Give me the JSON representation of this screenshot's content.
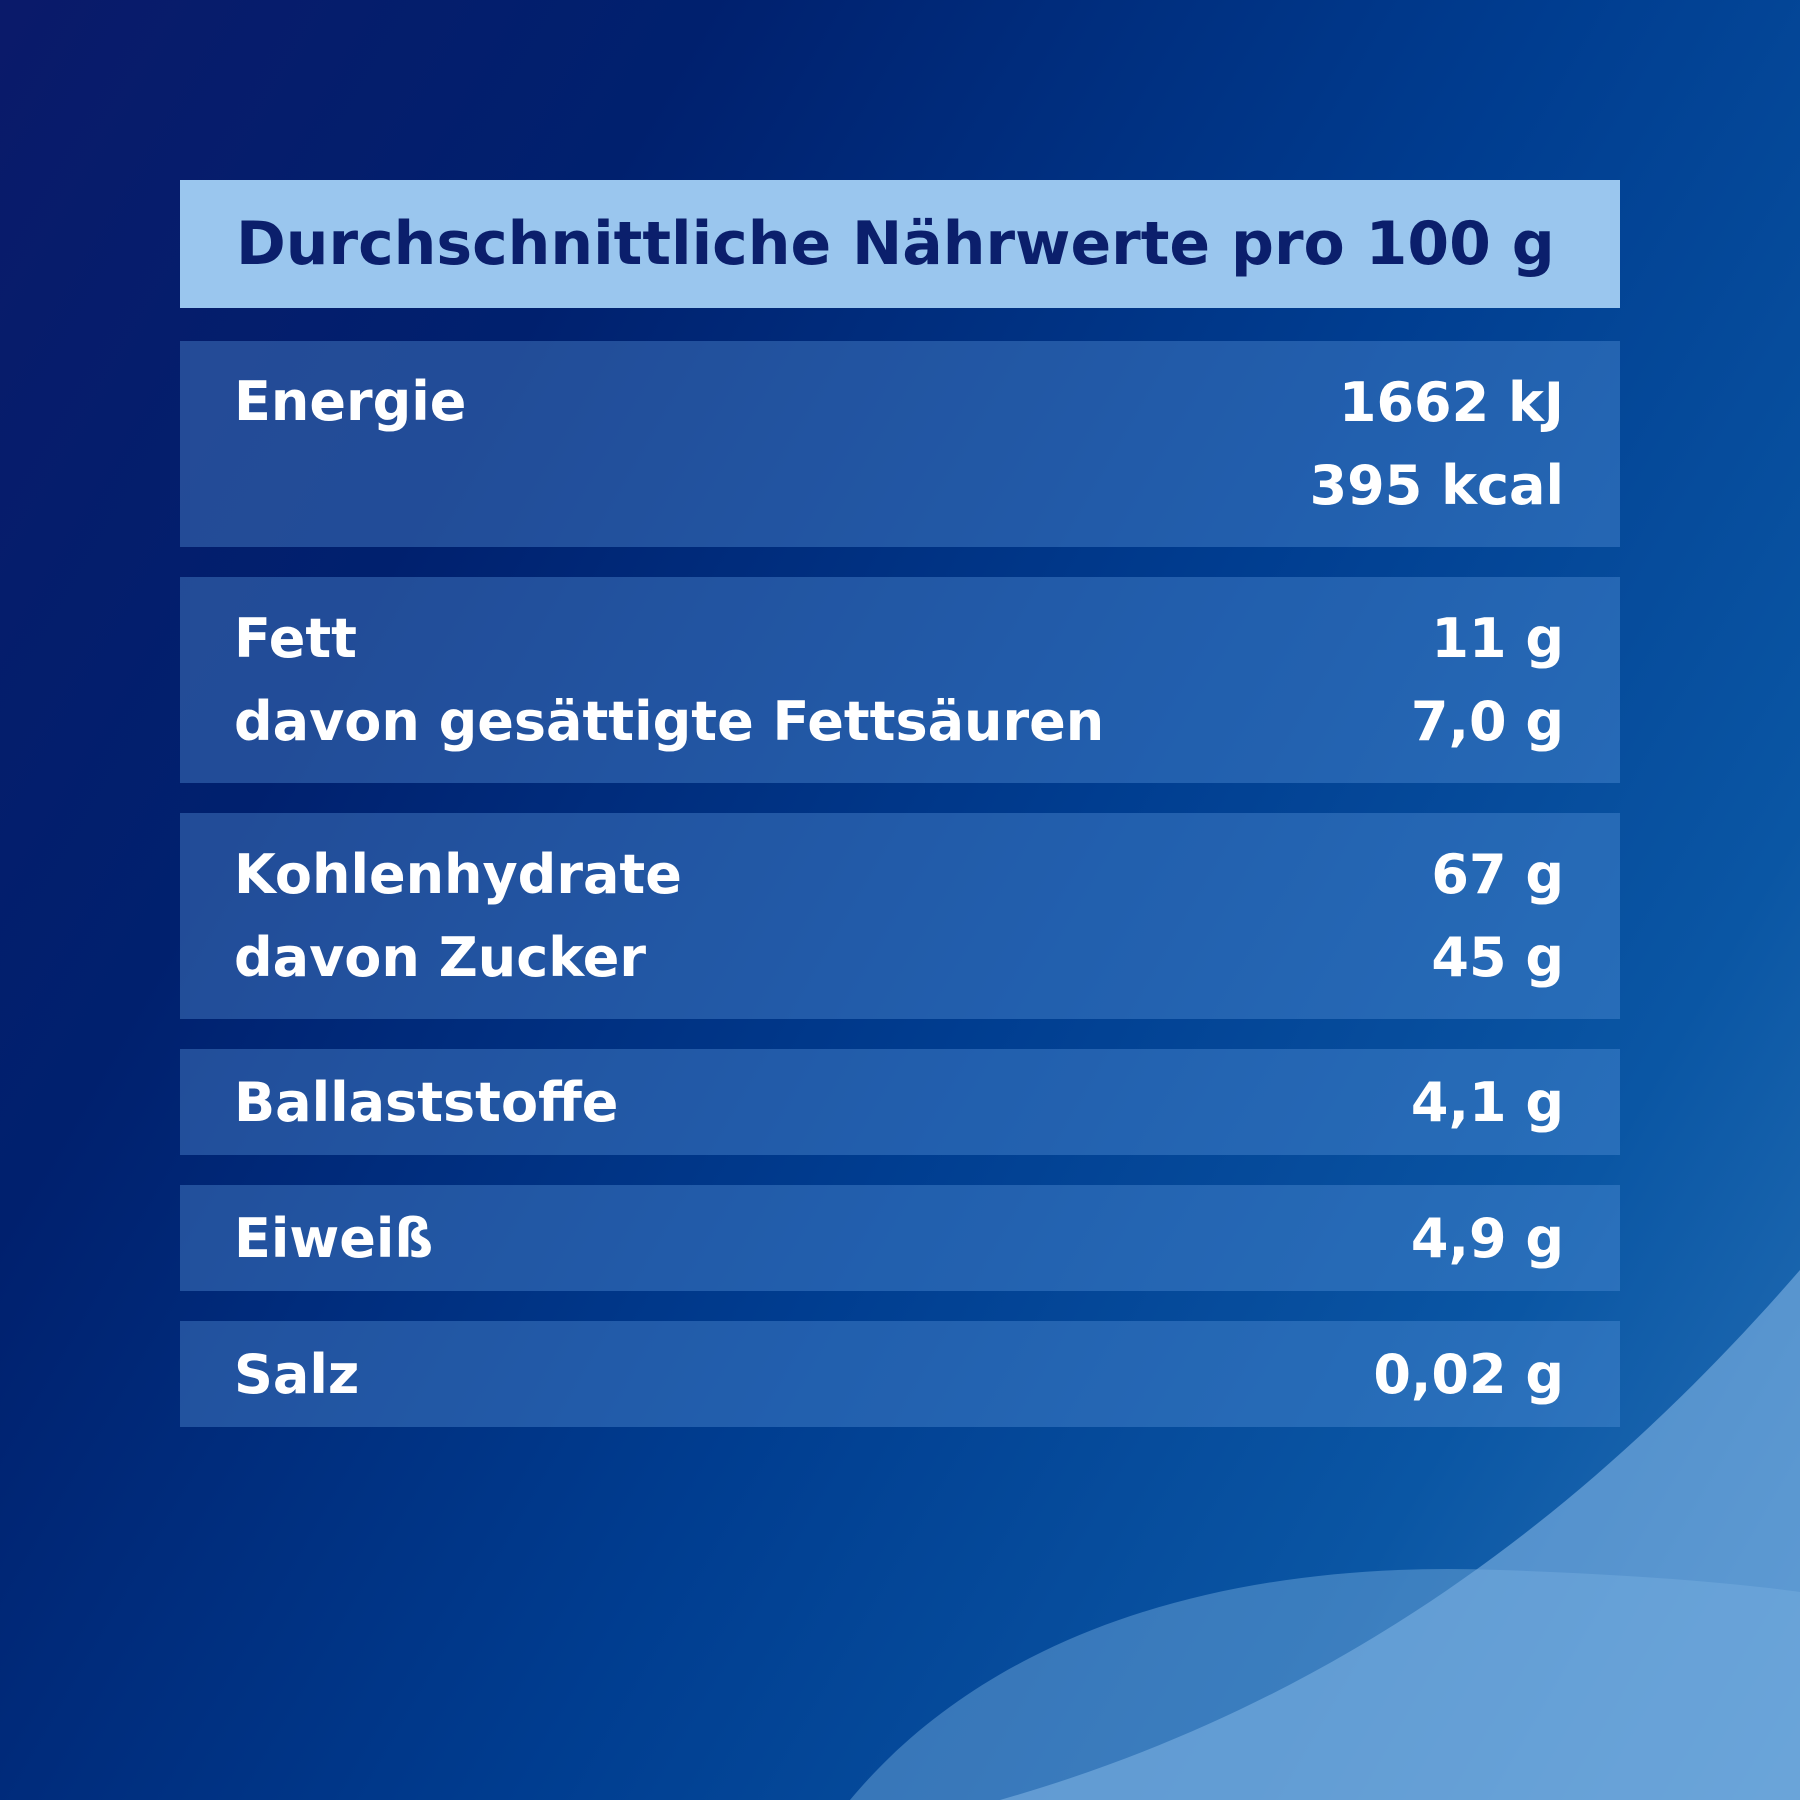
{
  "header": {
    "title": "Durchschnittliche Nährwerte pro 100 g"
  },
  "rows": [
    {
      "labels": [
        "Energie"
      ],
      "values": [
        "1662 kJ",
        "395 kcal"
      ]
    },
    {
      "labels": [
        "Fett",
        "davon gesättigte Fettsäuren"
      ],
      "values": [
        "11 g",
        "7,0 g"
      ]
    },
    {
      "labels": [
        "Kohlenhydrate",
        "davon Zucker"
      ],
      "values": [
        "67 g",
        "45 g"
      ]
    },
    {
      "labels": [
        "Ballaststoffe"
      ],
      "values": [
        "4,1 g"
      ]
    },
    {
      "labels": [
        "Eiweiß"
      ],
      "values": [
        "4,9 g"
      ]
    },
    {
      "labels": [
        "Salz"
      ],
      "values": [
        "0,02 g"
      ]
    }
  ]
}
